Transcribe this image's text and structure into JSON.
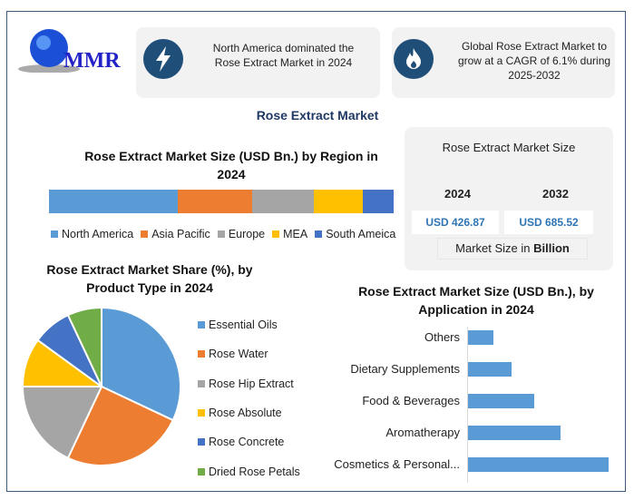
{
  "logo": {
    "text": "MMR"
  },
  "cards": [
    {
      "icon": "lightning-icon",
      "text": "North America dominated the Rose Extract Market in 2024"
    },
    {
      "icon": "flame-icon",
      "text": "Global Rose Extract Market to grow at a CAGR of 6.1% during 2025-2032"
    }
  ],
  "main_title": "Rose Extract Market",
  "market_size": {
    "title": "Rose Extract Market Size",
    "years": [
      "2024",
      "2032"
    ],
    "values": [
      "USD 426.87",
      "USD 685.52"
    ],
    "note_prefix": "Market Size in ",
    "note_bold": "Billion"
  },
  "colors": {
    "blue": "#5b9bd5",
    "orange": "#ed7d31",
    "gray": "#a5a5a5",
    "yellow": "#ffc000",
    "darkblue": "#4472c4",
    "green": "#70ad47",
    "navy": "#1f4e79"
  },
  "chart_data": [
    {
      "type": "bar",
      "orientation": "horizontal-stacked",
      "title": "Rose Extract Market Size (USD Bn.) by Region in 2024",
      "legend": "bottom",
      "series": [
        {
          "name": "North America",
          "value": 159.6
        },
        {
          "name": "Asia Pacific",
          "value": 92.2
        },
        {
          "name": "Europe",
          "value": 76.4
        },
        {
          "name": "MEA",
          "value": 60.6
        },
        {
          "name": "South Ameica",
          "value": 38.0
        }
      ]
    },
    {
      "type": "pie",
      "title": "Rose Extract Market Share (%), by Product Type in 2024",
      "legend": "right",
      "categories": [
        "Essential Oils",
        "Rose Water",
        "Rose Hip Extract",
        "Rose Absolute",
        "Rose Concrete",
        "Dried Rose Petals"
      ],
      "values": [
        32,
        25,
        18,
        10,
        8,
        7
      ]
    },
    {
      "type": "bar",
      "orientation": "horizontal",
      "title": "Rose Extract Market Size (USD Bn.), by Application in 2024",
      "categories": [
        "Others",
        "Dietary Supplements",
        "Food & Beverages",
        "Aromatherapy",
        "Cosmetics & Personal..."
      ],
      "values": [
        29,
        50,
        77,
        107,
        163
      ]
    }
  ]
}
